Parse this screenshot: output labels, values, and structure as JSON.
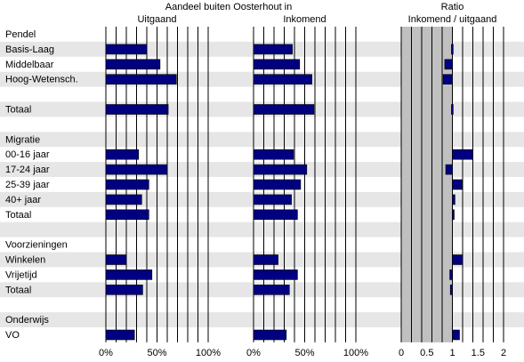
{
  "chart_data": {
    "type": "bar",
    "orientation": "horizontal",
    "supertitle": "Aandeel buiten Oosterhout in",
    "rows": [
      {
        "label": "Pendel",
        "kind": "header"
      },
      {
        "label": "Basis-Laag",
        "kind": "item"
      },
      {
        "label": "Middelbaar",
        "kind": "item"
      },
      {
        "label": "Hoog-Wetensch.",
        "kind": "item"
      },
      {
        "label": "",
        "kind": "blank"
      },
      {
        "label": "Totaal",
        "kind": "item"
      },
      {
        "label": "",
        "kind": "blank"
      },
      {
        "label": "Migratie",
        "kind": "header"
      },
      {
        "label": "00-16 jaar",
        "kind": "item"
      },
      {
        "label": "17-24 jaar",
        "kind": "item"
      },
      {
        "label": "25-39 jaar",
        "kind": "item"
      },
      {
        "label": "40+ jaar",
        "kind": "item"
      },
      {
        "label": "Totaal",
        "kind": "item"
      },
      {
        "label": "",
        "kind": "blank"
      },
      {
        "label": "Voorzieningen",
        "kind": "header"
      },
      {
        "label": "Winkelen",
        "kind": "item"
      },
      {
        "label": "Vrijetijd",
        "kind": "item"
      },
      {
        "label": "Totaal",
        "kind": "item"
      },
      {
        "label": "",
        "kind": "blank"
      },
      {
        "label": "Onderwijs",
        "kind": "header"
      },
      {
        "label": "VO",
        "kind": "item"
      }
    ],
    "panels": [
      {
        "title": "Uitgaand",
        "xlim": [
          0,
          1
        ],
        "ticks": [
          "0%",
          "50%",
          "100%"
        ],
        "values": [
          null,
          0.4,
          0.53,
          0.69,
          null,
          0.61,
          null,
          null,
          0.32,
          0.6,
          0.42,
          0.35,
          0.42,
          null,
          null,
          0.2,
          0.45,
          0.36,
          null,
          null,
          0.28
        ]
      },
      {
        "title": "Inkomend",
        "xlim": [
          0,
          1
        ],
        "ticks": [
          "0%",
          "50%",
          "100%"
        ],
        "values": [
          null,
          0.38,
          0.45,
          0.57,
          null,
          0.59,
          null,
          null,
          0.39,
          0.52,
          0.46,
          0.37,
          0.43,
          null,
          null,
          0.24,
          0.43,
          0.35,
          null,
          null,
          0.32
        ]
      },
      {
        "title": "Ratio\nInkomend / uitgaand",
        "xlim": [
          0,
          2
        ],
        "ticks": [
          "0",
          "0.5",
          "1",
          "1.5",
          "2"
        ],
        "reference": 1,
        "values": [
          null,
          0.98,
          0.85,
          0.82,
          null,
          0.98,
          null,
          null,
          1.4,
          0.87,
          1.19,
          1.05,
          1.03,
          null,
          null,
          1.2,
          0.95,
          0.96,
          null,
          null,
          1.14
        ]
      }
    ]
  },
  "colors": {
    "bar": "#000080",
    "stripe": "#e6e6e6",
    "shade": "#c0c0c0",
    "grid": "#000000"
  }
}
